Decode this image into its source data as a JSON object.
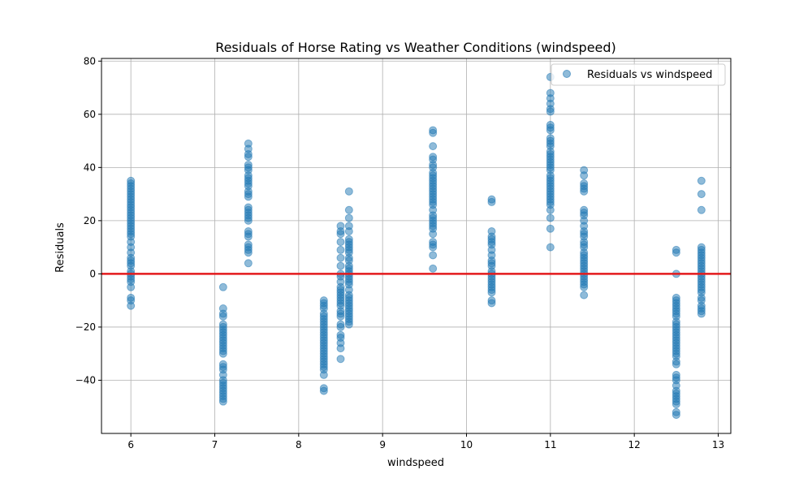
{
  "chart_data": {
    "type": "scatter",
    "title": "Residuals of Horse Rating vs Weather Conditions (windspeed)",
    "xlabel": "windspeed",
    "ylabel": "Residuals",
    "xlim": [
      5.65,
      13.15
    ],
    "ylim": [
      -60,
      81
    ],
    "xticks": [
      6,
      7,
      8,
      9,
      10,
      11,
      12,
      13
    ],
    "yticks": [
      -40,
      -20,
      0,
      20,
      40,
      60,
      80
    ],
    "grid": true,
    "legend_position": "top-right",
    "reference_line": {
      "y": 0,
      "color": "#e31a1c"
    },
    "series": [
      {
        "name": "Residuals vs windspeed",
        "color": "#1f77b4",
        "points": [
          {
            "x": 6.0,
            "y": [
              35,
              34,
              33,
              32,
              31,
              30,
              29,
              28,
              27,
              26,
              25,
              24,
              23,
              22,
              21,
              20,
              19,
              18,
              17,
              16,
              15,
              14,
              12,
              10,
              8,
              6,
              5,
              4,
              3,
              1,
              0,
              -1,
              -2,
              -3,
              -5,
              -9,
              -10,
              -12
            ]
          },
          {
            "x": 7.1,
            "y": [
              -5,
              -13,
              -15,
              -16,
              -19,
              -20,
              -21,
              -22,
              -23,
              -24,
              -25,
              -26,
              -27,
              -28,
              -29,
              -30,
              -34,
              -35,
              -36,
              -38,
              -40,
              -41,
              -42,
              -43,
              -44,
              -45,
              -46,
              -47,
              -48
            ]
          },
          {
            "x": 7.4,
            "y": [
              49,
              47,
              45,
              44,
              41,
              40,
              39,
              37,
              36,
              35,
              34,
              33,
              31,
              30,
              29,
              25,
              24,
              23,
              22,
              21,
              20,
              16,
              15,
              14,
              11,
              10,
              9,
              8,
              4
            ]
          },
          {
            "x": 8.3,
            "y": [
              -10,
              -11,
              -12,
              -13,
              -15,
              -16,
              -17,
              -18,
              -19,
              -20,
              -21,
              -22,
              -23,
              -24,
              -25,
              -26,
              -27,
              -28,
              -29,
              -30,
              -31,
              -32,
              -33,
              -34,
              -35,
              -36,
              -38,
              -43,
              -44
            ]
          },
          {
            "x": 8.5,
            "y": [
              18,
              16,
              15,
              12,
              9,
              6,
              3,
              0,
              -1,
              -3,
              -5,
              -6,
              -7,
              -8,
              -9,
              -10,
              -11,
              -12,
              -14,
              -15,
              -16,
              -19,
              -20,
              -23,
              -24,
              -26,
              -28,
              -32
            ]
          },
          {
            "x": 8.6,
            "y": [
              31,
              24,
              21,
              18,
              16,
              13,
              12,
              11,
              10,
              9,
              8,
              6,
              5,
              3,
              2,
              1,
              0,
              -1,
              -2,
              -3,
              -4,
              -6,
              -8,
              -9,
              -10,
              -11,
              -12,
              -13,
              -14,
              -15,
              -16,
              -17,
              -18,
              -19
            ]
          },
          {
            "x": 9.6,
            "y": [
              54,
              53,
              48,
              44,
              43,
              41,
              40,
              38,
              37,
              36,
              35,
              34,
              33,
              32,
              31,
              30,
              29,
              28,
              27,
              26,
              24,
              22,
              21,
              20,
              19,
              18,
              17,
              15,
              12,
              11,
              10,
              7,
              2
            ]
          },
          {
            "x": 10.3,
            "y": [
              28,
              27,
              16,
              14,
              13,
              12,
              11,
              9,
              7,
              5,
              4,
              3,
              1,
              0,
              -1,
              -2,
              -3,
              -4,
              -5,
              -6,
              -7,
              -10,
              -11
            ]
          },
          {
            "x": 11.0,
            "y": [
              74,
              68,
              66,
              64,
              62,
              61,
              56,
              55,
              54,
              51,
              50,
              49,
              48,
              46,
              45,
              44,
              43,
              42,
              41,
              40,
              39,
              37,
              36,
              35,
              34,
              33,
              32,
              31,
              30,
              29,
              28,
              27,
              26,
              24,
              21,
              17,
              10
            ]
          },
          {
            "x": 11.4,
            "y": [
              39,
              37,
              34,
              33,
              32,
              31,
              24,
              23,
              22,
              20,
              18,
              16,
              15,
              14,
              12,
              11,
              10,
              8,
              7,
              6,
              5,
              4,
              3,
              2,
              1,
              0,
              -1,
              -2,
              -3,
              -4,
              -5,
              -8
            ]
          },
          {
            "x": 12.5,
            "y": [
              9,
              8,
              0,
              -9,
              -10,
              -11,
              -12,
              -13,
              -14,
              -15,
              -16,
              -18,
              -19,
              -20,
              -21,
              -22,
              -23,
              -24,
              -25,
              -26,
              -27,
              -28,
              -29,
              -30,
              -31,
              -33,
              -34,
              -38,
              -39,
              -40,
              -42,
              -44,
              -45,
              -46,
              -47,
              -48,
              -49,
              -52,
              -53
            ]
          },
          {
            "x": 12.8,
            "y": [
              35,
              30,
              24,
              10,
              9,
              8,
              7,
              6,
              5,
              4,
              3,
              2,
              1,
              0,
              -1,
              -2,
              -3,
              -4,
              -5,
              -6,
              -7,
              -9,
              -10,
              -12,
              -13,
              -14,
              -15
            ]
          }
        ]
      }
    ]
  }
}
